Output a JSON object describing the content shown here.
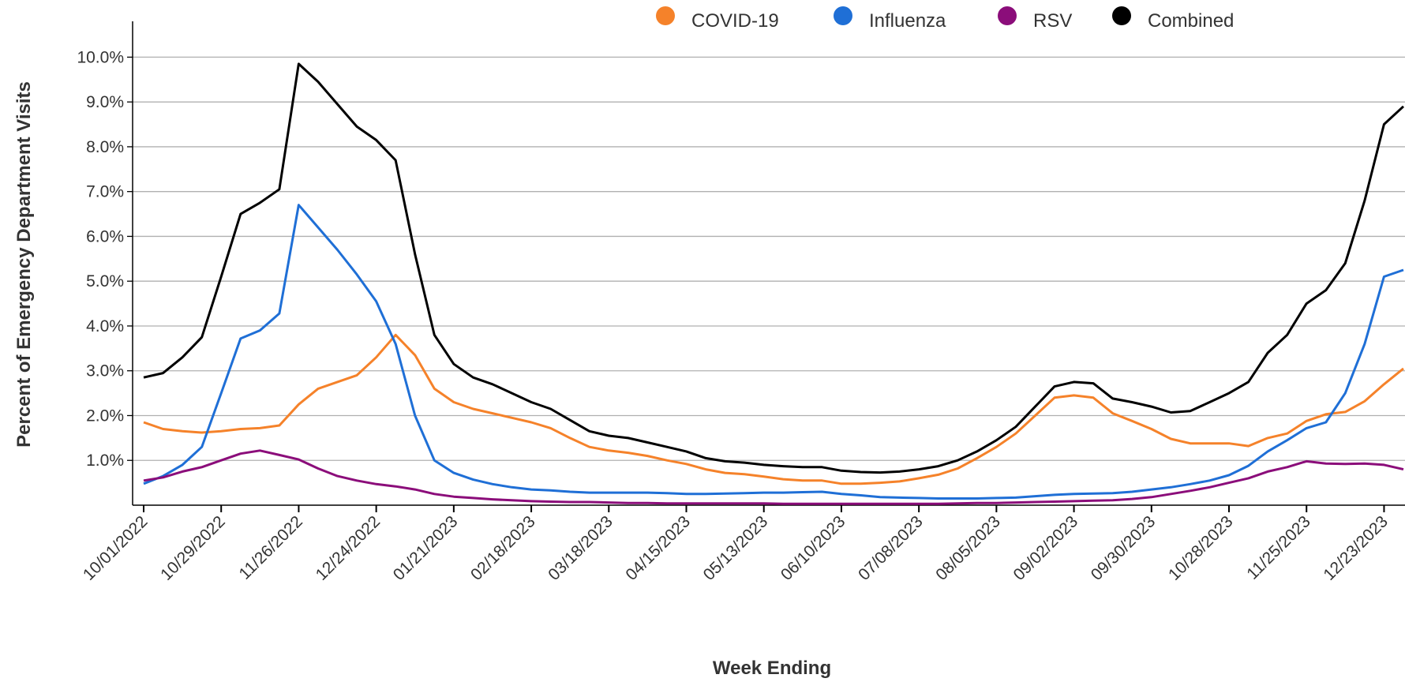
{
  "chart_data": {
    "type": "line",
    "x_label": "Week Ending",
    "y_label": "Percent of Emergency Department Visits",
    "x": [
      "10/01/2022",
      "10/08/2022",
      "10/15/2022",
      "10/22/2022",
      "10/29/2022",
      "11/05/2022",
      "11/12/2022",
      "11/19/2022",
      "11/26/2022",
      "12/03/2022",
      "12/10/2022",
      "12/17/2022",
      "12/24/2022",
      "12/31/2022",
      "01/07/2023",
      "01/14/2023",
      "01/21/2023",
      "01/28/2023",
      "02/04/2023",
      "02/11/2023",
      "02/18/2023",
      "02/25/2023",
      "03/04/2023",
      "03/11/2023",
      "03/18/2023",
      "03/25/2023",
      "04/01/2023",
      "04/08/2023",
      "04/15/2023",
      "04/22/2023",
      "04/29/2023",
      "05/06/2023",
      "05/13/2023",
      "05/20/2023",
      "05/27/2023",
      "06/03/2023",
      "06/10/2023",
      "06/17/2023",
      "06/24/2023",
      "07/01/2023",
      "07/08/2023",
      "07/15/2023",
      "07/22/2023",
      "07/29/2023",
      "08/05/2023",
      "08/12/2023",
      "08/19/2023",
      "08/26/2023",
      "09/02/2023",
      "09/09/2023",
      "09/16/2023",
      "09/23/2023",
      "09/30/2023",
      "10/07/2023",
      "10/14/2023",
      "10/21/2023",
      "10/28/2023",
      "11/04/2023",
      "11/11/2023",
      "11/18/2023",
      "11/25/2023",
      "12/02/2023",
      "12/09/2023",
      "12/16/2023",
      "12/23/2023",
      "12/30/2023"
    ],
    "xticks": [
      "10/01/2022",
      "10/29/2022",
      "11/26/2022",
      "12/24/2022",
      "01/21/2023",
      "02/18/2023",
      "03/18/2023",
      "04/15/2023",
      "05/13/2023",
      "06/10/2023",
      "07/08/2023",
      "08/05/2023",
      "09/02/2023",
      "09/30/2023",
      "10/28/2023",
      "11/25/2023",
      "12/23/2023"
    ],
    "ylim": [
      0,
      10.8
    ],
    "yticks": [
      {
        "value": 1,
        "label": "1.0%"
      },
      {
        "value": 2,
        "label": "2.0%"
      },
      {
        "value": 3,
        "label": "3.0%"
      },
      {
        "value": 4,
        "label": "4.0%"
      },
      {
        "value": 5,
        "label": "5.0%"
      },
      {
        "value": 6,
        "label": "6.0%"
      },
      {
        "value": 7,
        "label": "7.0%"
      },
      {
        "value": 8,
        "label": "8.0%"
      },
      {
        "value": 9,
        "label": "9.0%"
      },
      {
        "value": 10,
        "label": "10.0%"
      }
    ],
    "grid": true,
    "legend": "top",
    "series": [
      {
        "name": "COVID-19",
        "color": "#f5822a",
        "values": [
          1.85,
          1.7,
          1.65,
          1.62,
          1.65,
          1.7,
          1.72,
          1.78,
          2.25,
          2.6,
          2.75,
          2.9,
          3.3,
          3.8,
          3.35,
          2.6,
          2.3,
          2.15,
          2.05,
          1.95,
          1.85,
          1.72,
          1.5,
          1.3,
          1.22,
          1.17,
          1.1,
          1.0,
          0.92,
          0.8,
          0.72,
          0.69,
          0.64,
          0.58,
          0.55,
          0.55,
          0.48,
          0.48,
          0.5,
          0.53,
          0.6,
          0.68,
          0.82,
          1.05,
          1.3,
          1.6,
          2.0,
          2.4,
          2.45,
          2.4,
          2.05,
          1.88,
          1.7,
          1.48,
          1.38,
          1.38,
          1.38,
          1.32,
          1.5,
          1.6,
          1.88,
          2.03,
          2.08,
          2.32,
          2.7,
          3.05
        ]
      },
      {
        "name": "Influenza",
        "color": "#1f6fd6",
        "values": [
          0.48,
          0.65,
          0.9,
          1.3,
          2.5,
          3.72,
          3.9,
          4.28,
          6.7,
          6.2,
          5.7,
          5.15,
          4.55,
          3.6,
          2.0,
          1.0,
          0.72,
          0.57,
          0.47,
          0.4,
          0.35,
          0.33,
          0.3,
          0.28,
          0.28,
          0.28,
          0.28,
          0.27,
          0.25,
          0.25,
          0.26,
          0.27,
          0.28,
          0.28,
          0.29,
          0.3,
          0.25,
          0.22,
          0.18,
          0.17,
          0.16,
          0.15,
          0.15,
          0.15,
          0.16,
          0.17,
          0.2,
          0.23,
          0.25,
          0.26,
          0.27,
          0.3,
          0.35,
          0.4,
          0.47,
          0.55,
          0.67,
          0.88,
          1.2,
          1.45,
          1.72,
          1.85,
          2.5,
          3.6,
          5.1,
          5.25
        ]
      },
      {
        "name": "RSV",
        "color": "#8b0d7a",
        "values": [
          0.55,
          0.62,
          0.75,
          0.85,
          1.0,
          1.15,
          1.22,
          1.12,
          1.02,
          0.82,
          0.65,
          0.55,
          0.47,
          0.42,
          0.35,
          0.25,
          0.19,
          0.16,
          0.13,
          0.11,
          0.09,
          0.08,
          0.07,
          0.07,
          0.06,
          0.05,
          0.05,
          0.04,
          0.04,
          0.04,
          0.04,
          0.04,
          0.04,
          0.03,
          0.03,
          0.03,
          0.03,
          0.03,
          0.03,
          0.03,
          0.03,
          0.03,
          0.04,
          0.05,
          0.05,
          0.06,
          0.07,
          0.08,
          0.09,
          0.1,
          0.11,
          0.14,
          0.18,
          0.25,
          0.32,
          0.4,
          0.5,
          0.6,
          0.75,
          0.85,
          0.98,
          0.93,
          0.92,
          0.93,
          0.9,
          0.8
        ]
      },
      {
        "name": "Combined",
        "color": "#000000",
        "values": [
          2.85,
          2.95,
          3.3,
          3.75,
          5.1,
          6.5,
          6.75,
          7.05,
          9.85,
          9.45,
          8.95,
          8.45,
          8.15,
          7.7,
          5.6,
          3.8,
          3.15,
          2.85,
          2.7,
          2.5,
          2.3,
          2.15,
          1.9,
          1.65,
          1.55,
          1.5,
          1.4,
          1.3,
          1.2,
          1.05,
          0.98,
          0.95,
          0.9,
          0.87,
          0.85,
          0.85,
          0.77,
          0.74,
          0.73,
          0.75,
          0.8,
          0.87,
          1.0,
          1.2,
          1.45,
          1.75,
          2.2,
          2.65,
          2.75,
          2.72,
          2.38,
          2.3,
          2.2,
          2.07,
          2.1,
          2.3,
          2.5,
          2.75,
          3.4,
          3.8,
          4.5,
          4.8,
          5.4,
          6.8,
          8.5,
          8.9
        ]
      }
    ]
  }
}
